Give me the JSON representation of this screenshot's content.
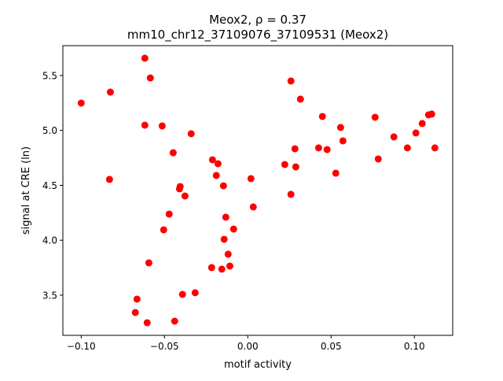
{
  "chart_data": {
    "type": "scatter",
    "title_line1": "Meox2, ρ = 0.37",
    "title_line2": "mm10_chr12_37109076_37109531 (Meox2)",
    "xlabel": "motif activity",
    "ylabel": "signal at CRE (ln)",
    "xlim": [
      -0.111,
      0.123
    ],
    "ylim": [
      3.134,
      5.772
    ],
    "xticks": [
      -0.1,
      -0.05,
      0.0,
      0.05,
      0.1
    ],
    "xtick_labels": [
      "−0.10",
      "−0.05",
      "0.00",
      "0.05",
      "0.10"
    ],
    "yticks": [
      3.5,
      4.0,
      4.5,
      5.0,
      5.5
    ],
    "ytick_labels": [
      "3.5",
      "4.0",
      "4.5",
      "5.0",
      "5.5"
    ],
    "grid": false,
    "marker_color": "#ff0000",
    "points": [
      [
        -0.1,
        5.249
      ],
      [
        -0.0825,
        5.349
      ],
      [
        -0.083,
        4.554
      ],
      [
        -0.0618,
        5.658
      ],
      [
        -0.0585,
        5.478
      ],
      [
        -0.0618,
        5.048
      ],
      [
        -0.0514,
        5.041
      ],
      [
        -0.0448,
        4.797
      ],
      [
        -0.0406,
        4.489
      ],
      [
        -0.041,
        4.468
      ],
      [
        -0.0377,
        4.403
      ],
      [
        -0.034,
        4.97
      ],
      [
        -0.0472,
        4.238
      ],
      [
        -0.0505,
        4.095
      ],
      [
        -0.0594,
        3.794
      ],
      [
        -0.0665,
        3.464
      ],
      [
        -0.0675,
        3.342
      ],
      [
        -0.0604,
        3.249
      ],
      [
        -0.0439,
        3.263
      ],
      [
        -0.0392,
        3.507
      ],
      [
        -0.0316,
        3.522
      ],
      [
        -0.0212,
        4.733
      ],
      [
        -0.0179,
        4.697
      ],
      [
        -0.0189,
        4.59
      ],
      [
        -0.0146,
        4.496
      ],
      [
        -0.0132,
        4.21
      ],
      [
        -0.0142,
        4.009
      ],
      [
        -0.0085,
        4.102
      ],
      [
        -0.0118,
        3.873
      ],
      [
        -0.0108,
        3.765
      ],
      [
        -0.0217,
        3.751
      ],
      [
        -0.0156,
        3.737
      ],
      [
        0.0019,
        4.561
      ],
      [
        0.0033,
        4.303
      ],
      [
        0.0259,
        5.45
      ],
      [
        0.0316,
        5.285
      ],
      [
        0.0448,
        5.127
      ],
      [
        0.0557,
        5.027
      ],
      [
        0.0571,
        4.905
      ],
      [
        0.0425,
        4.841
      ],
      [
        0.0476,
        4.826
      ],
      [
        0.0283,
        4.833
      ],
      [
        0.0288,
        4.668
      ],
      [
        0.0222,
        4.69
      ],
      [
        0.0259,
        4.418
      ],
      [
        0.0528,
        4.611
      ],
      [
        0.0764,
        5.12
      ],
      [
        0.0783,
        4.74
      ],
      [
        0.0877,
        4.941
      ],
      [
        0.0958,
        4.841
      ],
      [
        0.1009,
        4.977
      ],
      [
        0.1047,
        5.063
      ],
      [
        0.1085,
        5.142
      ],
      [
        0.1104,
        5.149
      ],
      [
        0.1123,
        4.841
      ]
    ]
  }
}
